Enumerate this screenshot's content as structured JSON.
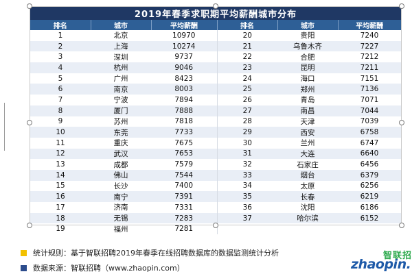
{
  "table": {
    "title": "2019年春季求职期平均薪酬城市分布",
    "headers": [
      "排名",
      "城市",
      "平均薪酬",
      "排名",
      "城市",
      "平均薪酬"
    ],
    "rows": [
      {
        "rank": "1",
        "city": "北京",
        "salary": "10970",
        "rank2": "20",
        "city2": "贵阳",
        "salary2": "7240"
      },
      {
        "rank": "2",
        "city": "上海",
        "salary": "10274",
        "rank2": "21",
        "city2": "乌鲁木齐",
        "salary2": "7227"
      },
      {
        "rank": "3",
        "city": "深圳",
        "salary": "9737",
        "rank2": "22",
        "city2": "合肥",
        "salary2": "7212"
      },
      {
        "rank": "4",
        "city": "杭州",
        "salary": "9046",
        "rank2": "23",
        "city2": "昆明",
        "salary2": "7211"
      },
      {
        "rank": "5",
        "city": "广州",
        "salary": "8423",
        "rank2": "24",
        "city2": "海口",
        "salary2": "7151"
      },
      {
        "rank": "6",
        "city": "南京",
        "salary": "8003",
        "rank2": "25",
        "city2": "郑州",
        "salary2": "7136"
      },
      {
        "rank": "7",
        "city": "宁波",
        "salary": "7894",
        "rank2": "26",
        "city2": "青岛",
        "salary2": "7071"
      },
      {
        "rank": "8",
        "city": "厦门",
        "salary": "7888",
        "rank2": "27",
        "city2": "南昌",
        "salary2": "7044"
      },
      {
        "rank": "9",
        "city": "苏州",
        "salary": "7818",
        "rank2": "28",
        "city2": "天津",
        "salary2": "7039"
      },
      {
        "rank": "10",
        "city": "东莞",
        "salary": "7733",
        "rank2": "29",
        "city2": "西安",
        "salary2": "6758"
      },
      {
        "rank": "11",
        "city": "重庆",
        "salary": "7675",
        "rank2": "30",
        "city2": "兰州",
        "salary2": "6747"
      },
      {
        "rank": "12",
        "city": "武汉",
        "salary": "7653",
        "rank2": "31",
        "city2": "大连",
        "salary2": "6640"
      },
      {
        "rank": "13",
        "city": "成都",
        "salary": "7579",
        "rank2": "32",
        "city2": "石家庄",
        "salary2": "6456"
      },
      {
        "rank": "14",
        "city": "佛山",
        "salary": "7544",
        "rank2": "33",
        "city2": "烟台",
        "salary2": "6379"
      },
      {
        "rank": "15",
        "city": "长沙",
        "salary": "7400",
        "rank2": "34",
        "city2": "太原",
        "salary2": "6256"
      },
      {
        "rank": "16",
        "city": "南宁",
        "salary": "7391",
        "rank2": "35",
        "city2": "长春",
        "salary2": "6219"
      },
      {
        "rank": "17",
        "city": "济南",
        "salary": "7331",
        "rank2": "36",
        "city2": "沈阳",
        "salary2": "6186"
      },
      {
        "rank": "18",
        "city": "无锡",
        "salary": "7283",
        "rank2": "37",
        "city2": "哈尔滨",
        "salary2": "6152"
      },
      {
        "rank": "19",
        "city": "福州",
        "salary": "7281",
        "rank2": "",
        "city2": "",
        "salary2": ""
      }
    ]
  },
  "notes": {
    "rule": "统计规则：基于智联招聘2019年春季在线招聘数据库的数据监测统计分析",
    "source": "数据来源：智联招聘（www.zhaopin.com）"
  },
  "logo": {
    "cn": "智联招",
    "en": "zhaopin."
  },
  "colors": {
    "title_bg": "#1f3864",
    "header_bg": "#2e5f96",
    "stripe": "#e9eef6",
    "note_gold": "#f2c100",
    "note_blue": "#2c4c8c",
    "logo_green": "#2aa84a",
    "logo_blue": "#1e5aa8"
  }
}
